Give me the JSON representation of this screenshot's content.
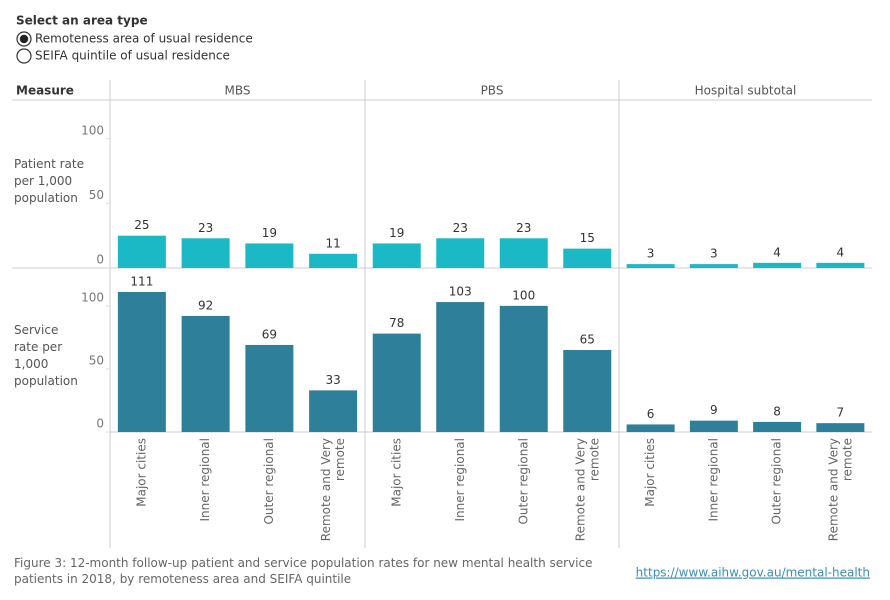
{
  "selector": {
    "title": "Select an area type",
    "options": [
      "Remoteness area of usual residence",
      "SEIFA quintile of usual residence"
    ],
    "selected": 0
  },
  "chart_data": {
    "type": "bar",
    "measure_header": "Measure",
    "columns": [
      "MBS",
      "PBS",
      "Hospital subtotal"
    ],
    "categories": [
      "Major cities",
      "Inner regional",
      "Outer regional",
      "Remote and Very remote"
    ],
    "ylim": [
      0,
      130
    ],
    "yticks": [
      0,
      50,
      100
    ],
    "rows": [
      {
        "label": "Patient rate per 1,000 population",
        "color": "#1bb8c6",
        "values": [
          [
            25,
            23,
            19,
            11
          ],
          [
            19,
            23,
            23,
            15
          ],
          [
            3,
            3,
            4,
            4
          ]
        ]
      },
      {
        "label": "Service rate per 1,000 population",
        "color": "#2e7f99",
        "values": [
          [
            111,
            92,
            69,
            33
          ],
          [
            78,
            103,
            100,
            65
          ],
          [
            6,
            9,
            8,
            7
          ]
        ]
      }
    ]
  },
  "caption": "Figure 3: 12-month follow-up patient and service population rates for new mental health service patients in 2018, by remoteness area and SEIFA quintile",
  "link": "https://www.aihw.gov.au/mental-health"
}
